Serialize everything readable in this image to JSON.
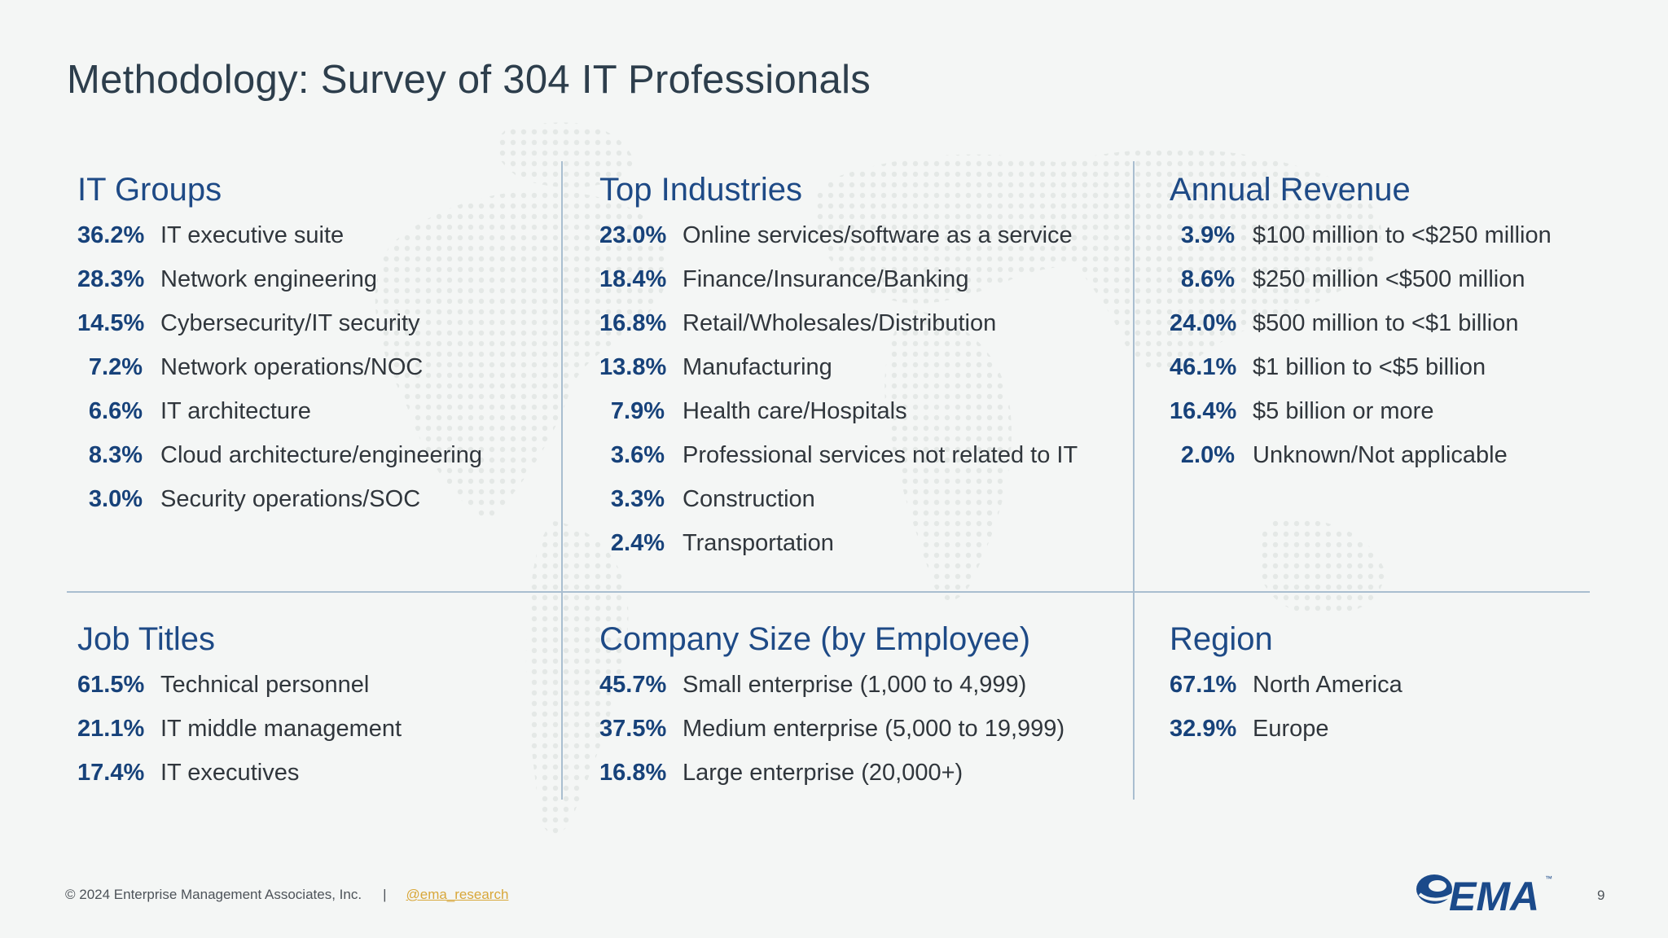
{
  "title": "Methodology: Survey of 304 IT Professionals",
  "sections": {
    "it_groups": {
      "heading": "IT Groups",
      "items": [
        {
          "pct": "36.2%",
          "label": "IT executive suite"
        },
        {
          "pct": "28.3%",
          "label": "Network engineering"
        },
        {
          "pct": "14.5%",
          "label": "Cybersecurity/IT security"
        },
        {
          "pct": "7.2%",
          "label": "Network operations/NOC"
        },
        {
          "pct": "6.6%",
          "label": "IT architecture"
        },
        {
          "pct": "8.3%",
          "label": "Cloud architecture/engineering"
        },
        {
          "pct": "3.0%",
          "label": "Security operations/SOC"
        }
      ]
    },
    "top_industries": {
      "heading": "Top Industries",
      "items": [
        {
          "pct": "23.0%",
          "label": "Online services/software as a service"
        },
        {
          "pct": "18.4%",
          "label": "Finance/Insurance/Banking"
        },
        {
          "pct": "16.8%",
          "label": "Retail/Wholesales/Distribution"
        },
        {
          "pct": "13.8%",
          "label": "Manufacturing"
        },
        {
          "pct": "7.9%",
          "label": "Health care/Hospitals"
        },
        {
          "pct": "3.6%",
          "label": "Professional services not related to IT"
        },
        {
          "pct": "3.3%",
          "label": "Construction"
        },
        {
          "pct": "2.4%",
          "label": "Transportation"
        }
      ]
    },
    "annual_revenue": {
      "heading": "Annual Revenue",
      "items": [
        {
          "pct": "3.9%",
          "label": "$100 million to <$250 million"
        },
        {
          "pct": "8.6%",
          "label": "$250 million <$500 million"
        },
        {
          "pct": "24.0%",
          "label": "$500 million to <$1 billion"
        },
        {
          "pct": "46.1%",
          "label": "$1 billion to <$5 billion"
        },
        {
          "pct": "16.4%",
          "label": "$5 billion or more"
        },
        {
          "pct": "2.0%",
          "label": "Unknown/Not applicable"
        }
      ]
    },
    "job_titles": {
      "heading": "Job Titles",
      "items": [
        {
          "pct": "61.5%",
          "label": "Technical personnel"
        },
        {
          "pct": "21.1%",
          "label": "IT middle management"
        },
        {
          "pct": "17.4%",
          "label": "IT executives"
        }
      ]
    },
    "company_size": {
      "heading": "Company Size (by Employee)",
      "items": [
        {
          "pct": "45.7%",
          "label": "Small enterprise (1,000 to 4,999)"
        },
        {
          "pct": "37.5%",
          "label": "Medium enterprise (5,000 to 19,999)"
        },
        {
          "pct": "16.8%",
          "label": "Large enterprise (20,000+)"
        }
      ]
    },
    "region": {
      "heading": "Region",
      "items": [
        {
          "pct": "67.1%",
          "label": "North America"
        },
        {
          "pct": "32.9%",
          "label": "Europe"
        }
      ]
    }
  },
  "footer": {
    "copyright": "© 2024 Enterprise Management Associates, Inc.",
    "separator": "|",
    "handle": "@ema_research",
    "page_number": "9"
  },
  "logo": {
    "text": "EMA",
    "tm": "™",
    "color": "#1b4a8a"
  }
}
